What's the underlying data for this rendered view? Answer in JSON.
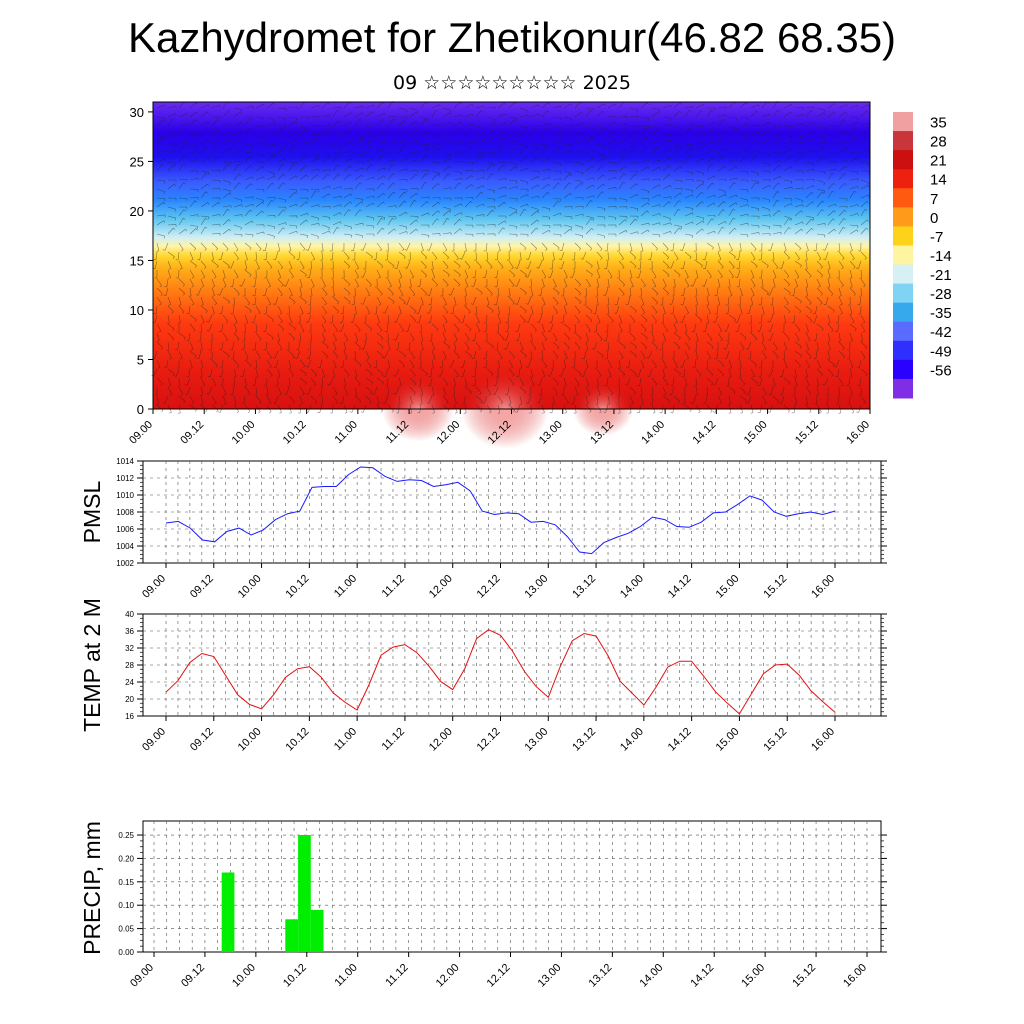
{
  "title": "Kazhydromet for Zhetikonur(46.82 68.35)",
  "subtitle": "09 ☆☆☆☆☆☆☆☆☆ 2025",
  "chart_data": [
    {
      "type": "heatmap",
      "description_panel": "cross-section",
      "ylim": [
        0,
        31
      ],
      "yticks": [
        0,
        5,
        10,
        15,
        20,
        25,
        30
      ],
      "xticks": [
        "09.00",
        "09.12",
        "10.00",
        "10.12",
        "11.00",
        "11.12",
        "12.00",
        "12.12",
        "13.00",
        "13.12",
        "14.00",
        "14.12",
        "15.00",
        "15.12",
        "16.00"
      ],
      "colorbar_labels": [
        "35",
        "28",
        "21",
        "14",
        "7",
        "0",
        "-7",
        "-14",
        "-21",
        "-28",
        "-35",
        "-42",
        "-49",
        "-56"
      ],
      "colorbar_colors": [
        "#7f2ee6",
        "#2a00ff",
        "#2f2fff",
        "#5a6cff",
        "#36a8ec",
        "#7fd4f4",
        "#d6f0f4",
        "#fff4a0",
        "#ffd21a",
        "#ff9a1a",
        "#ff5a10",
        "#ee2010",
        "#cc1010",
        "#c8353a",
        "#f0a0a0"
      ]
    },
    {
      "type": "line",
      "ylabel": "PMSL",
      "ylim": [
        1002,
        1014
      ],
      "yticks": [
        1002,
        1004,
        1006,
        1008,
        1010,
        1012,
        1014
      ],
      "xticks": [
        "09.00",
        "09.12",
        "10.00",
        "10.12",
        "11.00",
        "11.12",
        "12.00",
        "12.12",
        "13.00",
        "13.12",
        "14.00",
        "14.12",
        "15.00",
        "15.12",
        "16.00"
      ],
      "color": "#1a1aff",
      "values": [
        1006.7,
        1006.9,
        1006.1,
        1004.7,
        1004.5,
        1005.7,
        1006.1,
        1005.3,
        1005.9,
        1007.1,
        1007.8,
        1008.1,
        1010.9,
        1011.0,
        1011.0,
        1012.4,
        1013.3,
        1013.2,
        1012.2,
        1011.6,
        1011.8,
        1011.7,
        1011.0,
        1011.2,
        1011.5,
        1010.5,
        1008.1,
        1007.7,
        1007.9,
        1007.8,
        1006.8,
        1006.9,
        1006.5,
        1005.1,
        1003.3,
        1003.1,
        1004.4,
        1005.0,
        1005.5,
        1006.3,
        1007.4,
        1007.1,
        1006.3,
        1006.2,
        1006.8,
        1007.9,
        1008.0,
        1008.9,
        1009.9,
        1009.4,
        1008.0,
        1007.5,
        1007.8,
        1008.0,
        1007.7,
        1008.1
      ]
    },
    {
      "type": "line",
      "ylabel": "TEMP at 2 M",
      "ylim": [
        16,
        40
      ],
      "yticks": [
        16,
        20,
        24,
        28,
        32,
        36,
        40
      ],
      "xticks": [
        "09.00",
        "09.12",
        "10.00",
        "10.12",
        "11.00",
        "11.12",
        "12.00",
        "12.12",
        "13.00",
        "13.12",
        "14.00",
        "14.12",
        "15.00",
        "15.12",
        "16.00"
      ],
      "color": "#e01010",
      "values": [
        21.6,
        24.3,
        28.6,
        30.7,
        30.0,
        25.5,
        21.0,
        18.7,
        17.7,
        21.0,
        25.1,
        27.1,
        27.6,
        25.1,
        21.4,
        19.2,
        17.4,
        23.4,
        30.3,
        32.2,
        32.8,
        30.9,
        27.8,
        24.1,
        22.2,
        27.1,
        34.2,
        36.3,
        35.0,
        31.3,
        26.5,
        22.9,
        20.4,
        27.6,
        33.7,
        35.4,
        34.8,
        30.2,
        24.2,
        21.4,
        18.6,
        22.7,
        27.5,
        28.9,
        28.9,
        25.4,
        21.7,
        19.0,
        16.5,
        21.2,
        25.9,
        28.0,
        28.2,
        25.6,
        21.9,
        19.3,
        16.9
      ]
    },
    {
      "type": "bar",
      "ylabel": "PRECIP, mm",
      "ylim": [
        0,
        0.28
      ],
      "yticks": [
        "0.00",
        "0.05",
        "0.10",
        "0.15",
        "0.20",
        "0.25"
      ],
      "xticks": [
        "09.00",
        "09.12",
        "10.00",
        "10.12",
        "11.00",
        "11.12",
        "12.00",
        "12.12",
        "13.00",
        "13.12",
        "14.00",
        "14.12",
        "15.00",
        "15.12",
        "16.00"
      ],
      "color": "#00ee00",
      "bars": [
        {
          "x": 5,
          "value": 0.17
        },
        {
          "x": 10,
          "value": 0.07
        },
        {
          "x": 11,
          "value": 0.25
        },
        {
          "x": 12,
          "value": 0.09
        }
      ]
    }
  ]
}
